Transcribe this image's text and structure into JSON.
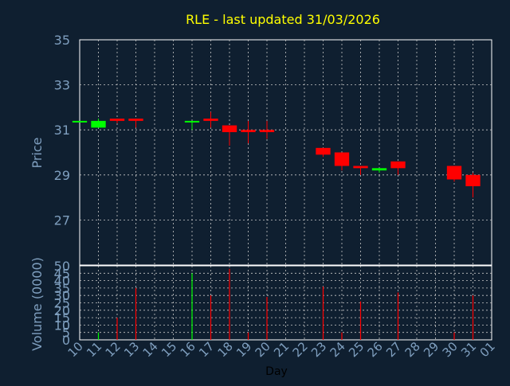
{
  "colors": {
    "background": "#0f1f30",
    "axis_text": "#7f9fbf",
    "title": "#ffff00",
    "grid": "#c8c8c8",
    "frame": "#ffffff",
    "up": "#00ff00",
    "down": "#ff0000",
    "xlabel": "#000000"
  },
  "chart_data": [
    {
      "type": "candlestick",
      "title": "RLE - last updated 31/03/2026",
      "ylabel": "Price",
      "ylim": [
        25,
        35
      ],
      "yticks": [
        27,
        29,
        31,
        33,
        35
      ],
      "x_categories": [
        "10",
        "11",
        "12",
        "13",
        "14",
        "15",
        "16",
        "17",
        "18",
        "19",
        "20",
        "21",
        "22",
        "23",
        "24",
        "25",
        "26",
        "27",
        "28",
        "29",
        "30",
        "31",
        "01"
      ],
      "candles": [
        {
          "day": "10",
          "open": 31.4,
          "high": 31.4,
          "low": 31.4,
          "close": 31.4
        },
        {
          "day": "11",
          "open": 31.1,
          "high": 31.5,
          "low": 31.1,
          "close": 31.4
        },
        {
          "day": "12",
          "open": 31.5,
          "high": 31.5,
          "low": 31.3,
          "close": 31.4
        },
        {
          "day": "13",
          "open": 31.5,
          "high": 31.5,
          "low": 31.1,
          "close": 31.4
        },
        {
          "day": "16",
          "open": 31.4,
          "high": 31.4,
          "low": 31.0,
          "close": 31.4
        },
        {
          "day": "17",
          "open": 31.5,
          "high": 31.8,
          "low": 31.1,
          "close": 31.4
        },
        {
          "day": "18",
          "open": 31.2,
          "high": 31.2,
          "low": 30.3,
          "close": 30.9
        },
        {
          "day": "19",
          "open": 31.0,
          "high": 31.4,
          "low": 30.4,
          "close": 30.9
        },
        {
          "day": "20",
          "open": 31.0,
          "high": 31.4,
          "low": 30.6,
          "close": 30.9
        },
        {
          "day": "23",
          "open": 30.2,
          "high": 30.2,
          "low": 29.8,
          "close": 29.9
        },
        {
          "day": "24",
          "open": 30.0,
          "high": 30.0,
          "low": 29.2,
          "close": 29.4
        },
        {
          "day": "25",
          "open": 29.4,
          "high": 29.4,
          "low": 29.0,
          "close": 29.3
        },
        {
          "day": "26",
          "open": 29.2,
          "high": 29.3,
          "low": 29.1,
          "close": 29.3
        },
        {
          "day": "27",
          "open": 29.6,
          "high": 29.6,
          "low": 29.0,
          "close": 29.3
        },
        {
          "day": "30",
          "open": 29.4,
          "high": 29.4,
          "low": 28.7,
          "close": 28.8
        },
        {
          "day": "31",
          "open": 29.0,
          "high": 29.1,
          "low": 28.0,
          "close": 28.5
        }
      ]
    },
    {
      "type": "bar",
      "ylabel": "Volume (0000)",
      "xlabel": "Day",
      "ylim": [
        0,
        50
      ],
      "yticks": [
        0,
        5,
        10,
        15,
        20,
        25,
        30,
        35,
        40,
        45,
        50
      ],
      "volumes": [
        {
          "day": "11",
          "value": 5,
          "direction": "up"
        },
        {
          "day": "12",
          "value": 15,
          "direction": "down"
        },
        {
          "day": "13",
          "value": 35,
          "direction": "down"
        },
        {
          "day": "16",
          "value": 45,
          "direction": "up"
        },
        {
          "day": "17",
          "value": 30,
          "direction": "down"
        },
        {
          "day": "18",
          "value": 48,
          "direction": "down"
        },
        {
          "day": "19",
          "value": 5,
          "direction": "down"
        },
        {
          "day": "20",
          "value": 29,
          "direction": "down"
        },
        {
          "day": "23",
          "value": 36,
          "direction": "down"
        },
        {
          "day": "24",
          "value": 5,
          "direction": "down"
        },
        {
          "day": "25",
          "value": 26,
          "direction": "down"
        },
        {
          "day": "27",
          "value": 32,
          "direction": "down"
        },
        {
          "day": "30",
          "value": 5,
          "direction": "down"
        },
        {
          "day": "31",
          "value": 30,
          "direction": "down"
        }
      ]
    }
  ]
}
